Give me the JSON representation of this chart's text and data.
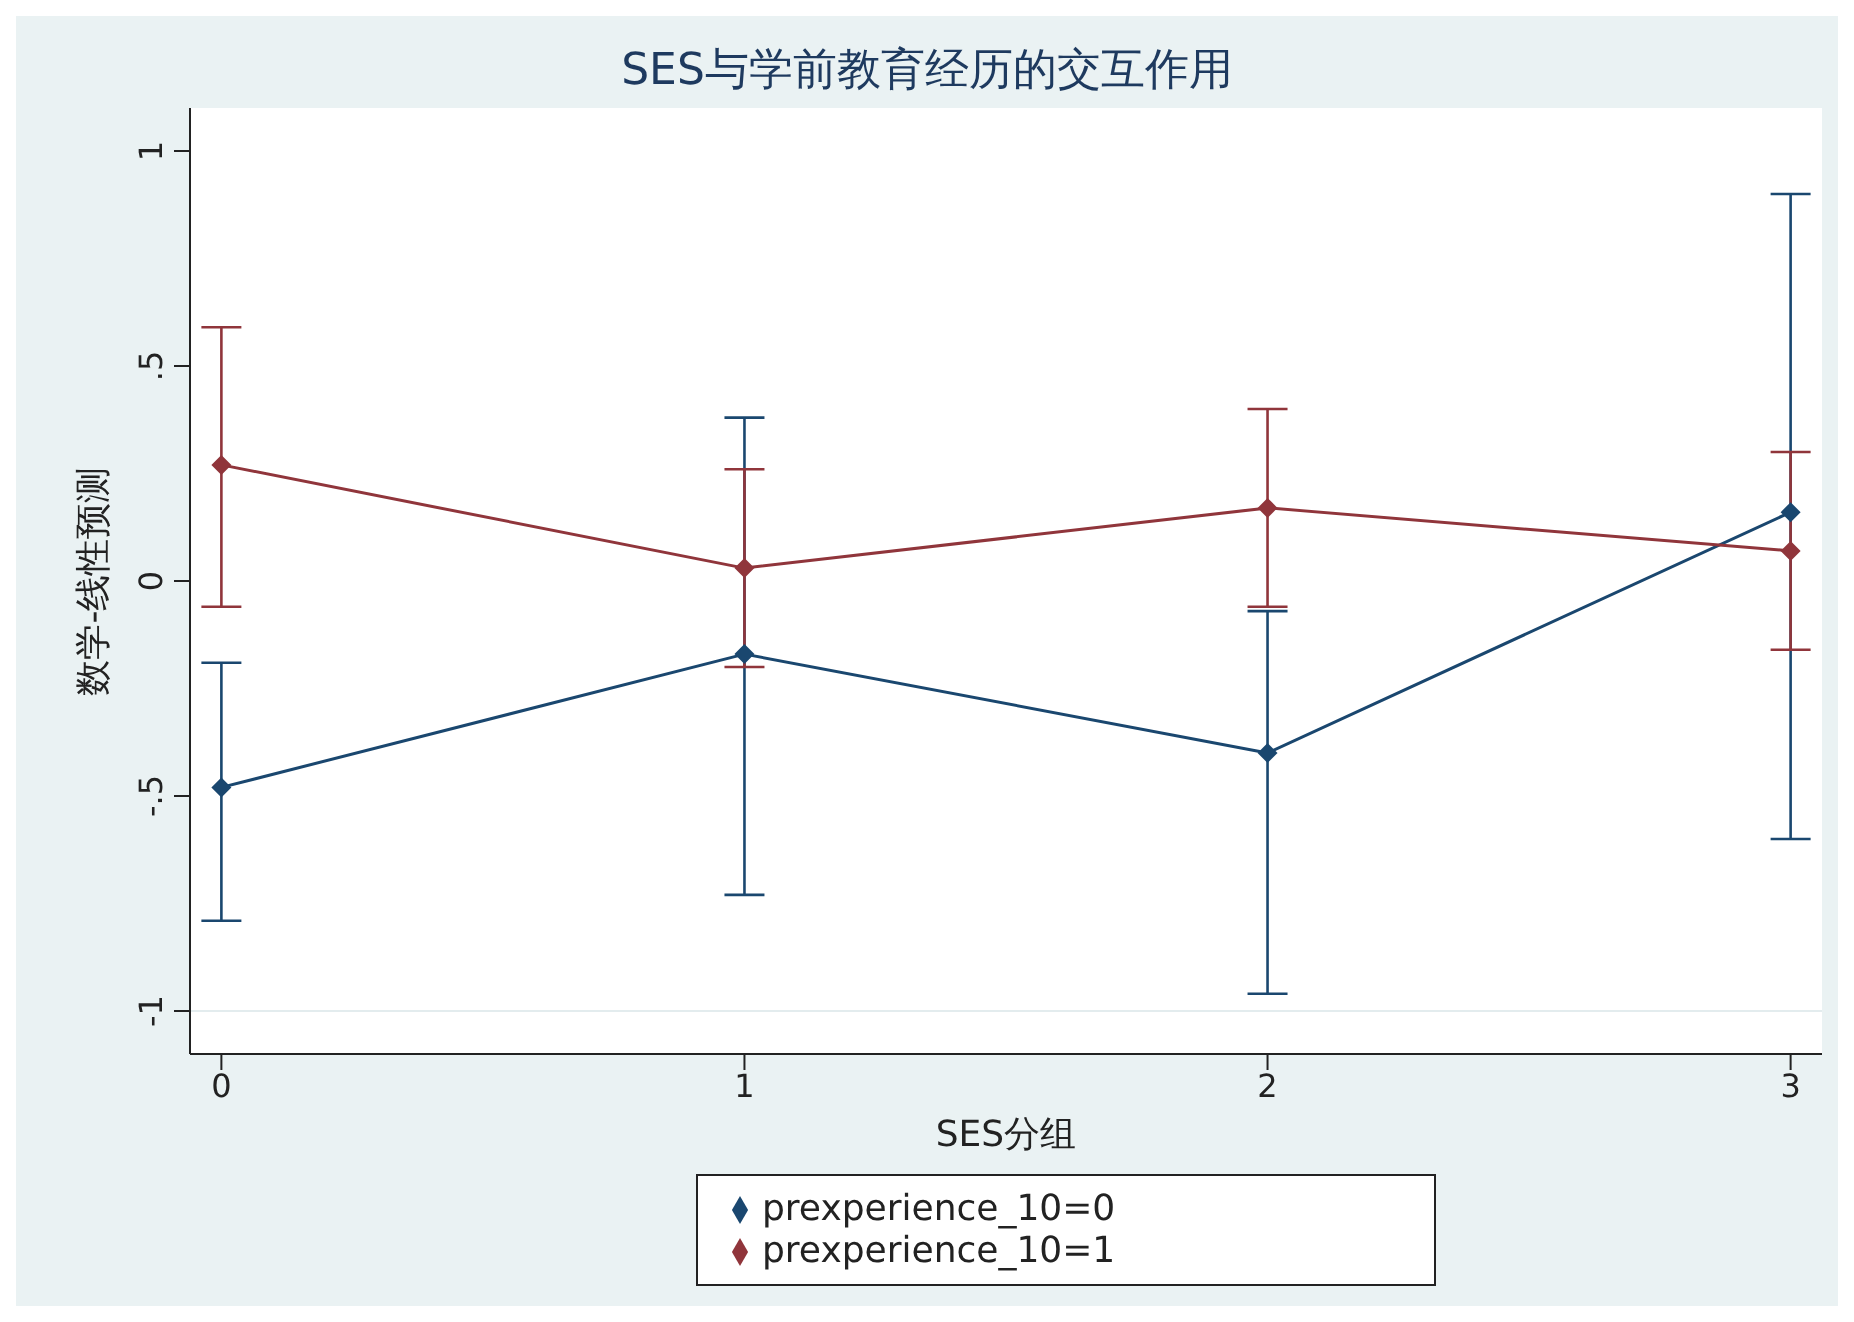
{
  "chart_data": {
    "type": "line",
    "title": "SES与学前教育经历的交互作用",
    "xlabel": "SES分组",
    "ylabel": "数学-线性预测",
    "x": [
      0,
      1,
      2,
      3
    ],
    "series": [
      {
        "name": "prexperience_10=0",
        "color": "#1a476f",
        "values": [
          -0.48,
          -0.17,
          -0.4,
          0.16
        ],
        "errors": [
          [
            -0.79,
            -0.19
          ],
          [
            -0.73,
            0.38
          ],
          [
            -0.96,
            -0.07
          ],
          [
            -0.6,
            0.9
          ]
        ]
      },
      {
        "name": "prexperience_10=1",
        "color": "#90353b",
        "values": [
          0.27,
          0.03,
          0.17,
          0.07
        ],
        "errors": [
          [
            -0.06,
            0.59
          ],
          [
            -0.2,
            0.26
          ],
          [
            -0.06,
            0.4
          ],
          [
            -0.16,
            0.3
          ]
        ]
      }
    ],
    "xlim": [
      -0.06,
      3.06
    ],
    "xticks": [
      0,
      1,
      2,
      3
    ],
    "ylim": [
      -1.1,
      1.1
    ],
    "yticks": [
      {
        "value": -1,
        "label": "-1"
      },
      {
        "value": -0.5,
        "label": "-.5"
      },
      0,
      {
        "value": 0.5,
        "label": ".5"
      },
      1
    ],
    "grid": "y",
    "legend": "bottom",
    "marker": "diamond",
    "line_style": "solid"
  }
}
